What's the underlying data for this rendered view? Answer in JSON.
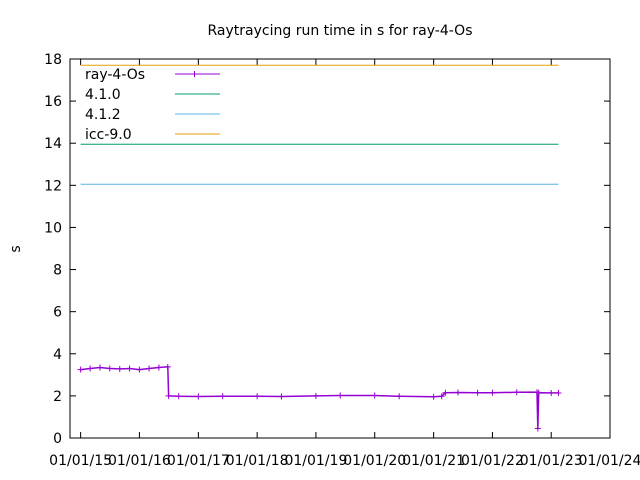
{
  "chart_data": {
    "type": "line",
    "title": "Raytraycing run time in s for ray-4-Os",
    "xlabel": "",
    "ylabel": "s",
    "ylim": [
      0,
      18
    ],
    "yticks": [
      0,
      2,
      4,
      6,
      8,
      10,
      12,
      14,
      16,
      18
    ],
    "xlim": [
      "2014-10-27",
      "2024-01-01"
    ],
    "xticks": [
      {
        "date": "2015-01-01",
        "label": "01/01/15"
      },
      {
        "date": "2016-01-01",
        "label": "01/01/16"
      },
      {
        "date": "2017-01-01",
        "label": "01/01/17"
      },
      {
        "date": "2018-01-01",
        "label": "01/01/18"
      },
      {
        "date": "2019-01-01",
        "label": "01/01/19"
      },
      {
        "date": "2020-01-01",
        "label": "01/01/20"
      },
      {
        "date": "2021-01-01",
        "label": "01/01/21"
      },
      {
        "date": "2022-01-01",
        "label": "01/01/22"
      },
      {
        "date": "2023-01-01",
        "label": "01/01/23"
      },
      {
        "date": "2024-01-01",
        "label": "01/01/24"
      }
    ],
    "legend_position": "top-left",
    "grid": false,
    "series": [
      {
        "name": "ray-4-Os",
        "color": "#9400d3",
        "style": "line-points",
        "points": [
          [
            "2015-01-01",
            3.25
          ],
          [
            "2015-03-01",
            3.3
          ],
          [
            "2015-05-01",
            3.35
          ],
          [
            "2015-07-01",
            3.3
          ],
          [
            "2015-09-01",
            3.28
          ],
          [
            "2015-11-01",
            3.3
          ],
          [
            "2016-01-01",
            3.25
          ],
          [
            "2016-03-01",
            3.3
          ],
          [
            "2016-05-01",
            3.35
          ],
          [
            "2016-06-25",
            3.38
          ],
          [
            "2016-06-30",
            2.0
          ],
          [
            "2016-09-01",
            1.98
          ],
          [
            "2017-01-01",
            1.97
          ],
          [
            "2017-06-01",
            1.98
          ],
          [
            "2018-01-01",
            1.98
          ],
          [
            "2018-06-01",
            1.97
          ],
          [
            "2019-01-01",
            2.0
          ],
          [
            "2019-06-01",
            2.02
          ],
          [
            "2020-01-01",
            2.02
          ],
          [
            "2020-06-01",
            1.98
          ],
          [
            "2021-01-01",
            1.96
          ],
          [
            "2021-02-20",
            1.98
          ],
          [
            "2021-03-15",
            2.15
          ],
          [
            "2021-06-01",
            2.16
          ],
          [
            "2021-10-01",
            2.15
          ],
          [
            "2022-01-01",
            2.15
          ],
          [
            "2022-06-01",
            2.17
          ],
          [
            "2022-10-05",
            2.18
          ],
          [
            "2022-10-10",
            0.45
          ],
          [
            "2022-10-15",
            2.15
          ],
          [
            "2023-01-01",
            2.14
          ],
          [
            "2023-02-15",
            2.14
          ]
        ]
      },
      {
        "name": "4.1.0",
        "color": "#009e73",
        "style": "line",
        "points": [
          [
            "2015-01-01",
            13.95
          ],
          [
            "2023-02-15",
            13.95
          ]
        ]
      },
      {
        "name": "4.1.2",
        "color": "#56b4e9",
        "style": "line",
        "points": [
          [
            "2015-01-01",
            12.05
          ],
          [
            "2023-02-15",
            12.05
          ]
        ]
      },
      {
        "name": "icc-9.0",
        "color": "#e69f00",
        "style": "line",
        "points": [
          [
            "2015-01-01",
            17.7
          ],
          [
            "2023-02-15",
            17.7
          ]
        ]
      }
    ]
  }
}
